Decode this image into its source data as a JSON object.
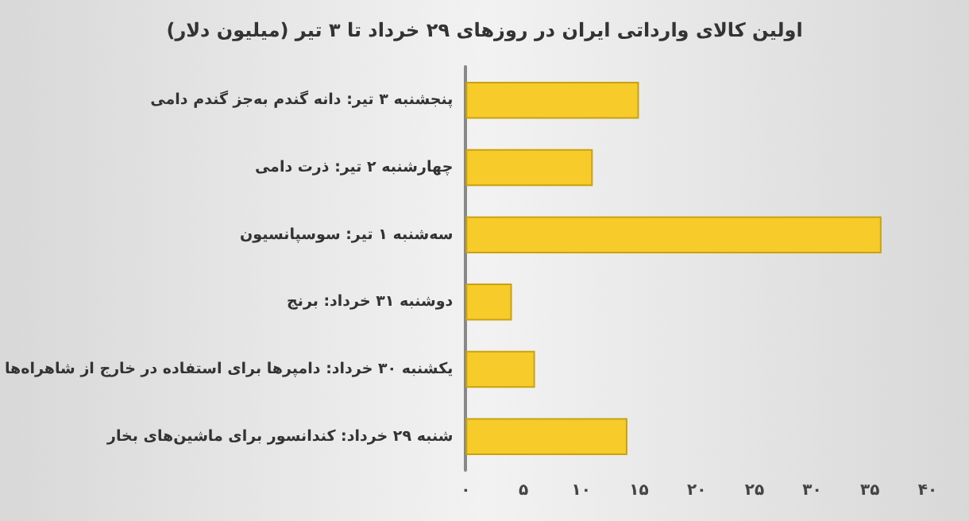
{
  "chart_data": {
    "type": "bar",
    "orientation": "horizontal",
    "title": "اولین کالای وارداتی ایران در روزهای ۲۹ خرداد تا ۳ تیر (میلیون دلار)",
    "categories": [
      "پنجشنبه ۳ تیر: دانه گندم به‌جز گندم دامی",
      "چهارشنبه ۲ تیر: ذرت دامی",
      "سه‌شنبه ۱ تیر: سوسپانسیون",
      "دوشنبه ۳۱ خرداد: برنج",
      "یکشنبه ۳۰ خرداد: دامپرها برای استفاده در خارج از شاهراه‌ها",
      "شنبه ۲۹ خرداد: کندانسور برای ماشین‌های بخار"
    ],
    "values": [
      15,
      11,
      36,
      4,
      6,
      14
    ],
    "color": "#f7cb2a",
    "xlim": [
      0,
      40
    ],
    "xticks": [
      {
        "value": 0,
        "label": "۰"
      },
      {
        "value": 5,
        "label": "۵"
      },
      {
        "value": 10,
        "label": "۱۰"
      },
      {
        "value": 15,
        "label": "۱۵"
      },
      {
        "value": 20,
        "label": "۲۰"
      },
      {
        "value": 25,
        "label": "۲۵"
      },
      {
        "value": 30,
        "label": "۳۰"
      },
      {
        "value": 35,
        "label": "۳۵"
      },
      {
        "value": 40,
        "label": "۴۰"
      }
    ],
    "grid": false
  }
}
